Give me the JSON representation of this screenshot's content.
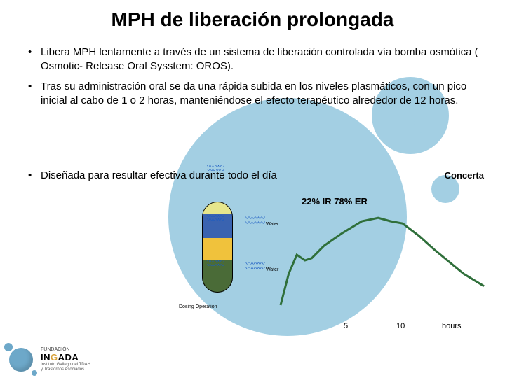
{
  "title": "MPH de liberación prolongada",
  "bullets": [
    "Libera MPH lentamente a través de un sistema de liberación controlada vía bomba osmótica ( Osmotic- Release Oral Sysstem: OROS).",
    "Tras su administración oral se da una rápida subida en los niveles plasmáticos, con un pico inicial al cabo de 1 o 2 horas, manteniéndose el efecto terapéutico alrededor de 12 horas."
  ],
  "bullet3": "Diseñada para resultar efectiva durante todo el día",
  "concerta_label": "Concerta",
  "ir_er_label": "22% IR 78% ER",
  "capsule": {
    "segments": [
      "top",
      "blue",
      "yellow",
      "olive"
    ],
    "colors": {
      "top": "#e6e68c",
      "blue": "#3a63b0",
      "yellow": "#f0c23c",
      "olive": "#4a6b37"
    },
    "wave_label_1": "Water",
    "wave_label_2": "Water",
    "dosing_label": "Dosing Operation"
  },
  "chart": {
    "type": "line",
    "line_color": "#2f6f3a",
    "line_width": 3,
    "background_color": "transparent",
    "xlim": [
      0,
      15
    ],
    "ylim": [
      0,
      100
    ],
    "points": [
      [
        0,
        10
      ],
      [
        0.6,
        38
      ],
      [
        1.2,
        55
      ],
      [
        1.8,
        50
      ],
      [
        2.3,
        52
      ],
      [
        3.2,
        63
      ],
      [
        4.5,
        74
      ],
      [
        6.0,
        85
      ],
      [
        7.2,
        88
      ],
      [
        8.1,
        85
      ],
      [
        9.0,
        83
      ],
      [
        10.2,
        72
      ],
      [
        11.3,
        60
      ],
      [
        12.5,
        48
      ],
      [
        13.5,
        38
      ],
      [
        15,
        27
      ]
    ],
    "x_ticks": {
      "5": "5",
      "10": "10",
      "hours_label": "hours"
    }
  },
  "logo": {
    "line1": "FUNDACIÓN",
    "name_prefix": "IN",
    "name_mid": "G",
    "name_suffix": "ADA",
    "sub1": "Instituto Gallego del TDAH",
    "sub2": "y Trastornos Asociados"
  }
}
